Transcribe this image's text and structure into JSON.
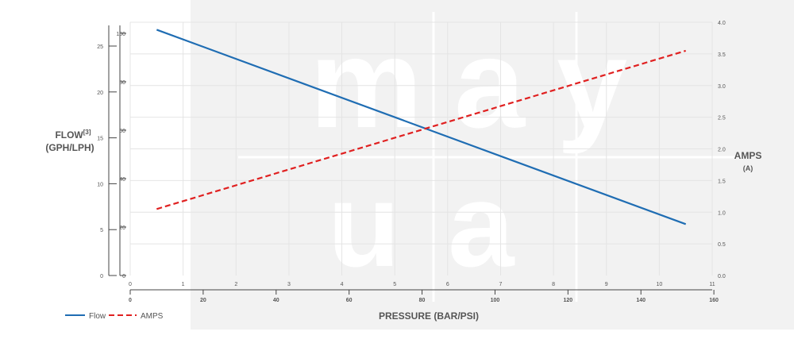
{
  "chart_data": {
    "type": "line",
    "left_axis": {
      "label": "FLOW",
      "label_sup": "[3]",
      "sublabel": "(GPH/LPH)",
      "outer_ticks": [
        "0",
        "5",
        "10",
        "15",
        "20",
        "25"
      ],
      "inner_ticks": [
        "0",
        "20",
        "40",
        "60",
        "80",
        "100"
      ],
      "ylim_gph": [
        0,
        27
      ],
      "ylim_lph": [
        0,
        102.2
      ]
    },
    "right_axis": {
      "label": "AMPS",
      "sublabel": "(A)",
      "ticks": [
        "0.0",
        "0.5",
        "1.0",
        "1.5",
        "2.0",
        "2.5",
        "3.0",
        "3.5",
        "4.0"
      ],
      "ylim": [
        0,
        4.0
      ]
    },
    "x_axis": {
      "label": "PRESSURE (BAR/PSI)",
      "top_ticks": [
        "0",
        "1",
        "2",
        "3",
        "4",
        "5",
        "6",
        "7",
        "8",
        "9",
        "10",
        "11"
      ],
      "bottom_ticks": [
        "0",
        "20",
        "40",
        "60",
        "80",
        "100",
        "120",
        "140",
        "160"
      ],
      "xlim_bar": [
        0,
        11
      ]
    },
    "series": [
      {
        "name": "Flow",
        "axis": "left",
        "unit": "LPH",
        "color": "#1f6db3",
        "style": "solid",
        "x": [
          0.5,
          10.5
        ],
        "y": [
          101.5,
          21.2
        ]
      },
      {
        "name": "AMPS",
        "axis": "right",
        "unit": "A",
        "color": "#e02020",
        "style": "dashed",
        "x": [
          0.5,
          10.5
        ],
        "y": [
          1.05,
          3.55
        ]
      }
    ],
    "legend_position": "bottom-left",
    "grid": true
  },
  "watermark": {
    "text": "may",
    "text2": "ua"
  }
}
